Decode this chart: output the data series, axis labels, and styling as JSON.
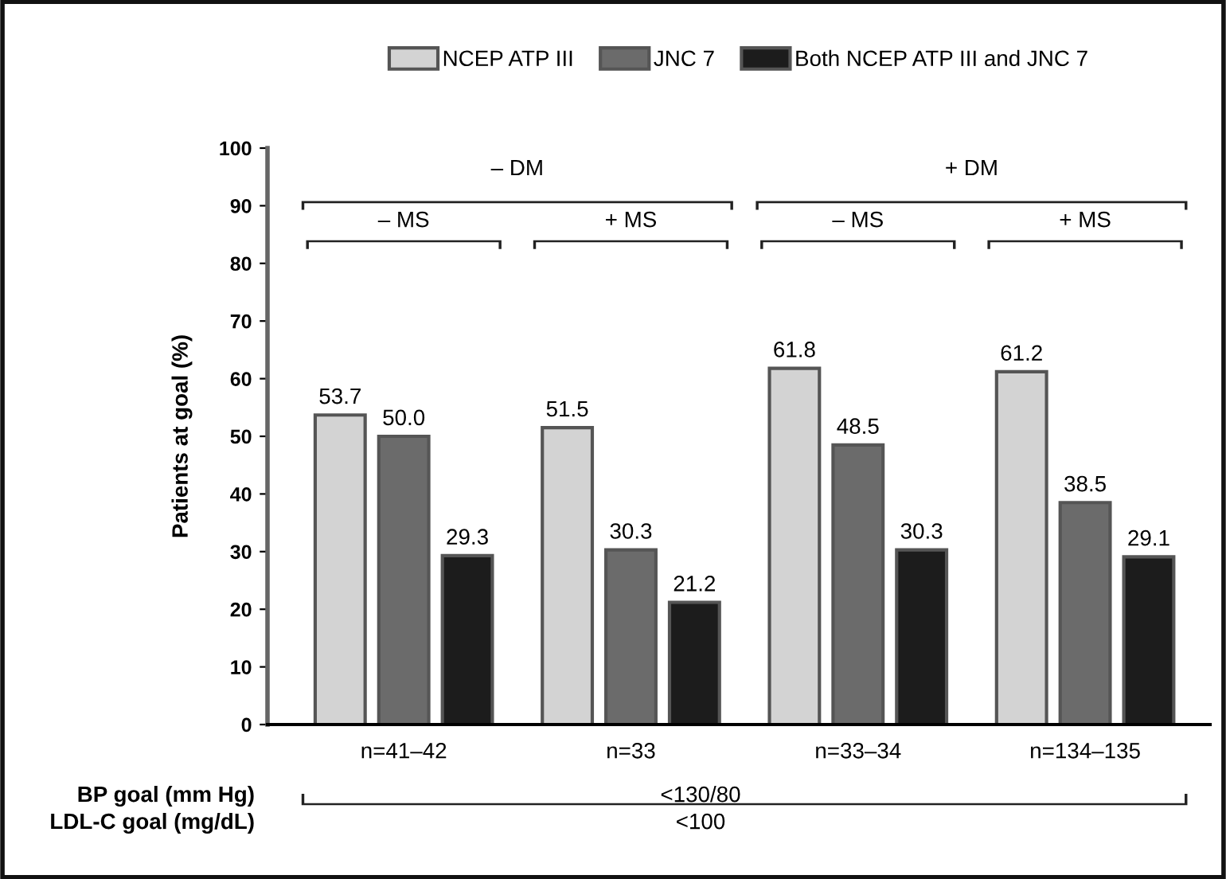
{
  "chart_data": {
    "type": "bar",
    "ylabel": "Patients at goal (%)",
    "categories": [
      "n=41–42",
      "n=33",
      "n=33–34",
      "n=134–135"
    ],
    "series": [
      {
        "name": "NCEP ATP III",
        "color": "#d3d3d3",
        "values": [
          53.7,
          51.5,
          61.8,
          61.2
        ]
      },
      {
        "name": "JNC 7",
        "color": "#6b6b6b",
        "values": [
          50.0,
          30.3,
          48.5,
          38.5
        ]
      },
      {
        "name": "Both NCEP ATP III and JNC 7",
        "color": "#1c1c1c",
        "values": [
          29.3,
          21.2,
          30.3,
          29.1
        ]
      }
    ],
    "value_labels": [
      [
        "53.7",
        "51.5",
        "61.8",
        "61.2"
      ],
      [
        "50.0",
        "30.3",
        "48.5",
        "38.5"
      ],
      [
        "29.3",
        "21.2",
        "30.3",
        "29.1"
      ]
    ],
    "ylim": [
      0,
      100
    ],
    "yticks": [
      0,
      10,
      20,
      30,
      40,
      50,
      60,
      70,
      80,
      90,
      100
    ],
    "grid": false,
    "legend": "top",
    "annotations": [
      "– DM",
      "+ DM",
      "– MS",
      "+ MS",
      "– MS",
      "+ MS",
      "BP goal (mm Hg)",
      "<130/80",
      "LDL-C goal (mg/dL)",
      "<100"
    ]
  }
}
